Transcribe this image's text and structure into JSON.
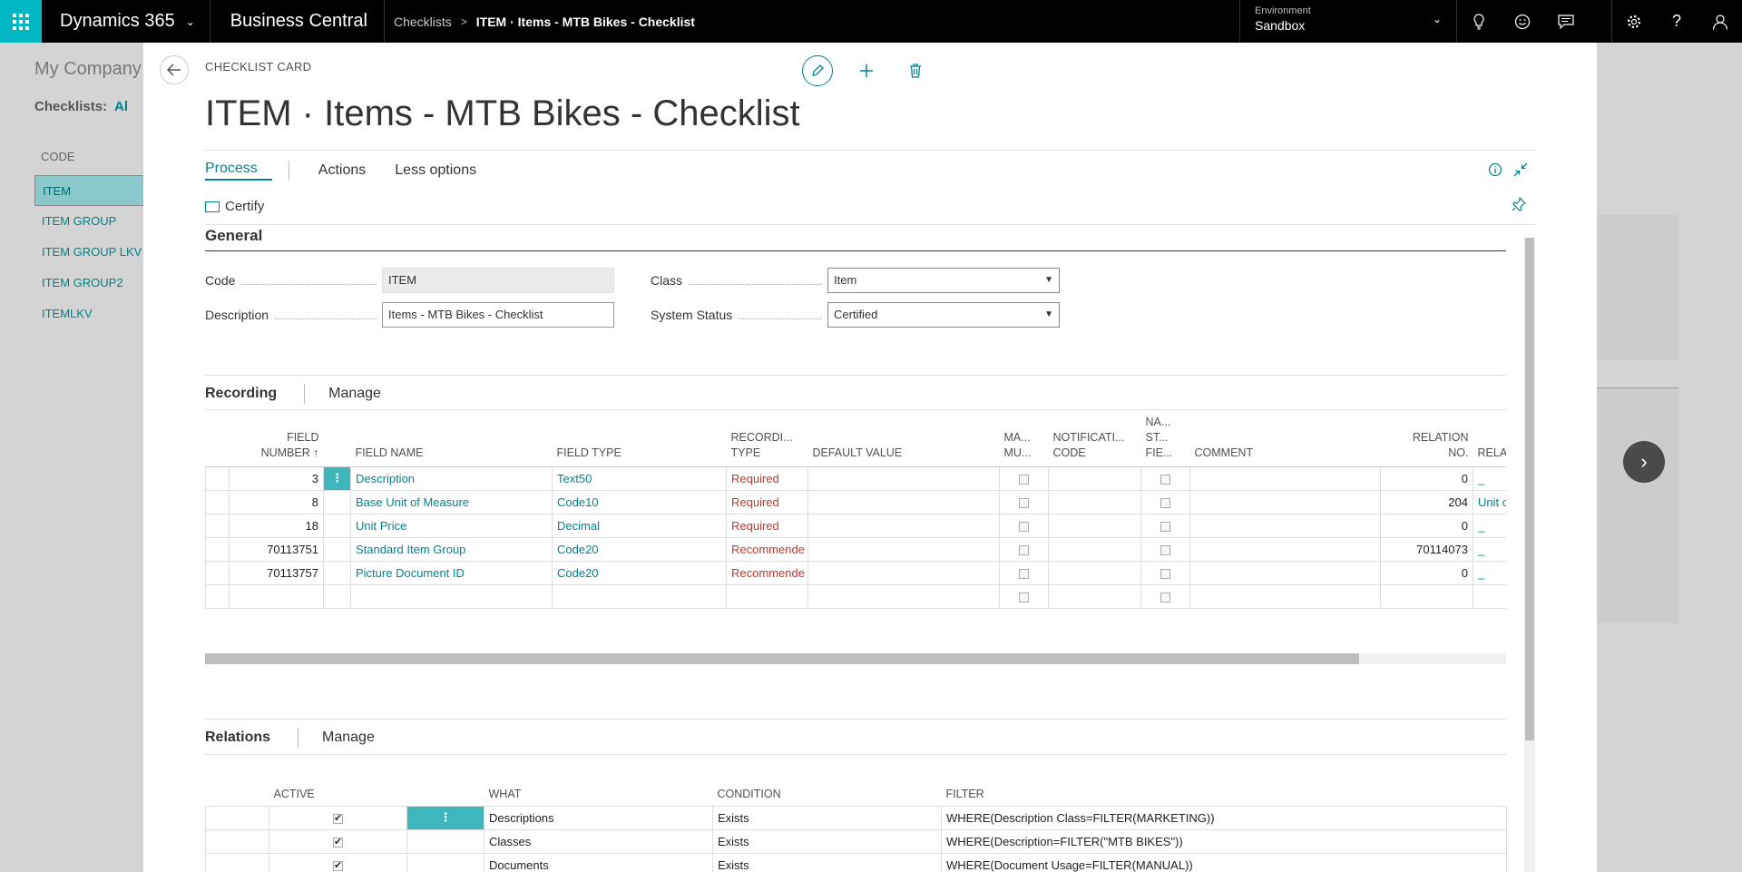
{
  "topbar": {
    "brand": "Dynamics 365",
    "app": "Business Central",
    "breadcrumb_parent": "Checklists",
    "breadcrumb_current": "ITEM · Items - MTB Bikes - Checklist",
    "env_label": "Environment",
    "env_value": "Sandbox"
  },
  "background": {
    "company": "My Company",
    "filter_label": "Checklists:",
    "filter_value": "Al",
    "code_header": "CODE",
    "codes": [
      "ITEM",
      "ITEM GROUP",
      "ITEM GROUP LKV",
      "ITEM GROUP2",
      "ITEMLKV"
    ]
  },
  "card": {
    "type": "CHECKLIST CARD",
    "title": "ITEM · Items - MTB Bikes - Checklist",
    "menu": {
      "process": "Process",
      "actions": "Actions",
      "less": "Less options"
    },
    "certify": "Certify",
    "general": {
      "header": "General",
      "code_label": "Code",
      "code_value": "ITEM",
      "description_label": "Description",
      "description_value": "Items - MTB Bikes - Checklist",
      "class_label": "Class",
      "class_value": "Item",
      "status_label": "System Status",
      "status_value": "Certified"
    },
    "recording": {
      "header": "Recording",
      "manage": "Manage",
      "columns": {
        "field_number_1": "FIELD",
        "field_number_2": "NUMBER ↑",
        "field_name": "FIELD NAME",
        "field_type": "FIELD TYPE",
        "rec_type_1": "RECORDI...",
        "rec_type_2": "TYPE",
        "default_value": "DEFAULT VALUE",
        "manual_1": "MA...",
        "manual_2": "MU...",
        "notif_1": "NOTIFICATI...",
        "notif_2": "CODE",
        "na_1": "NA...",
        "na_2": "ST...",
        "na_3": "FIE...",
        "comment": "COMMENT",
        "relation_1": "RELATION",
        "relation_2": "NO.",
        "relation_3": "RELAT"
      },
      "rows": [
        {
          "number": "3",
          "name": "Description",
          "type": "Text50",
          "rtype": "Required",
          "relno": "0",
          "rel": "_"
        },
        {
          "number": "8",
          "name": "Base Unit of Measure",
          "type": "Code10",
          "rtype": "Required",
          "relno": "204",
          "rel": "Unit c"
        },
        {
          "number": "18",
          "name": "Unit Price",
          "type": "Decimal",
          "rtype": "Required",
          "relno": "0",
          "rel": "_"
        },
        {
          "number": "70113751",
          "name": "Standard Item Group",
          "type": "Code20",
          "rtype": "Recommende",
          "relno": "70114073",
          "rel": "_"
        },
        {
          "number": "70113757",
          "name": "Picture Document ID",
          "type": "Code20",
          "rtype": "Recommende",
          "relno": "0",
          "rel": "_"
        }
      ]
    },
    "relations": {
      "header": "Relations",
      "manage": "Manage",
      "columns": {
        "active": "ACTIVE",
        "what": "WHAT",
        "condition": "CONDITION",
        "filter": "FILTER"
      },
      "rows": [
        {
          "active": true,
          "what": "Descriptions",
          "condition": "Exists",
          "filter": "WHERE(Description Class=FILTER(MARKETING))"
        },
        {
          "active": true,
          "what": "Classes",
          "condition": "Exists",
          "filter": "WHERE(Description=FILTER(\"MTB BIKES\"))"
        },
        {
          "active": true,
          "what": "Documents",
          "condition": "Exists",
          "filter": "WHERE(Document Usage=FILTER(MANUAL))"
        }
      ]
    }
  },
  "colors": {
    "accent": "#008489",
    "selection": "#3fb6bc",
    "required": "#c0392b",
    "topbar": "#000000"
  }
}
